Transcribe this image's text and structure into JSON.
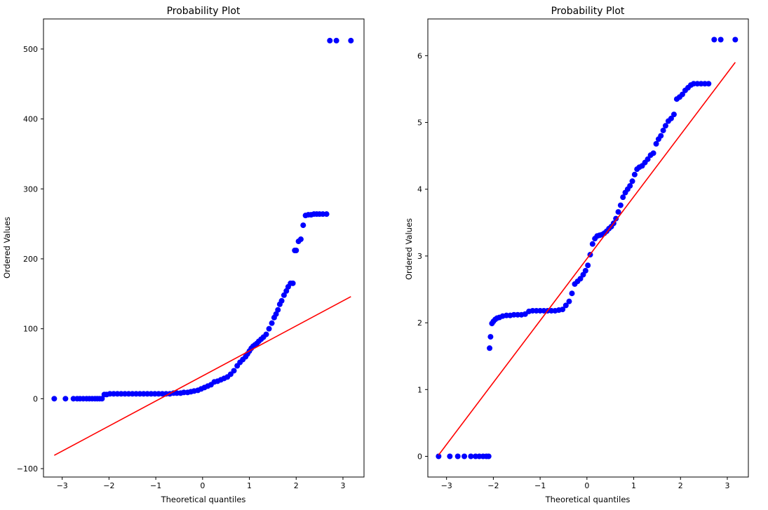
{
  "chart_data": [
    {
      "type": "scatter",
      "title": "Probability Plot",
      "xlabel": "Theoretical quantiles",
      "ylabel": "Ordered Values",
      "xlim": [
        -3.4,
        3.45
      ],
      "ylim": [
        -112,
        543
      ],
      "xticks": [
        -3,
        -2,
        -1,
        0,
        1,
        2,
        3
      ],
      "xtick_labels": [
        "−3",
        "−2",
        "−1",
        "0",
        "1",
        "2",
        "3"
      ],
      "yticks": [
        -100,
        0,
        100,
        200,
        300,
        400,
        500
      ],
      "ytick_labels": [
        "−100",
        "0",
        "100",
        "200",
        "300",
        "400",
        "500"
      ],
      "grid": false,
      "colors": {
        "points": "#0000ff",
        "fit_line": "#ff0000"
      },
      "fit_line": {
        "x": [
          -3.17,
          3.17
        ],
        "y": [
          -81,
          146
        ]
      },
      "series": [
        {
          "kind": "ordered-values",
          "x": [
            -3.17,
            -2.93,
            -2.76,
            -2.68,
            -2.62,
            -2.55,
            -2.48,
            -2.42,
            -2.36,
            -2.3,
            -2.25,
            -2.2,
            -2.15,
            -2.1,
            -2.05,
            -1.98,
            -1.9,
            -1.82,
            -1.74,
            -1.66,
            -1.58,
            -1.5,
            -1.42,
            -1.34,
            -1.26,
            -1.18,
            -1.1,
            -1.02,
            -0.94,
            -0.86,
            -0.78,
            -0.7,
            -0.62,
            -0.55,
            -0.47,
            -0.4,
            -0.32,
            -0.25,
            -0.18,
            -0.1,
            -0.03,
            0.04,
            0.11,
            0.18,
            0.25,
            0.32,
            0.39,
            0.46,
            0.53,
            0.6,
            0.67,
            0.74,
            0.8,
            0.86,
            0.92,
            0.96,
            1.0,
            1.04,
            1.08,
            1.12,
            1.16,
            1.2,
            1.25,
            1.3,
            1.36,
            1.42,
            1.48,
            1.53,
            1.57,
            1.61,
            1.65,
            1.69,
            1.74,
            1.79,
            1.83,
            1.88,
            1.93,
            1.97,
            2.0,
            2.05,
            2.1,
            2.15,
            2.2,
            2.26,
            2.32,
            2.38,
            2.44,
            2.5,
            2.57,
            2.65,
            2.72,
            2.86,
            3.17
          ],
          "y": [
            0,
            0,
            0,
            0,
            0,
            0,
            0,
            0,
            0,
            0,
            0,
            0,
            0,
            6,
            6,
            7,
            7,
            7,
            7,
            7,
            7,
            7,
            7,
            7,
            7,
            7,
            7,
            7,
            7,
            7,
            7,
            7,
            8,
            8,
            8,
            9,
            9,
            10,
            11,
            12,
            14,
            16,
            18,
            20,
            24,
            25,
            27,
            29,
            31,
            35,
            40,
            47,
            52,
            56,
            60,
            64,
            68,
            72,
            75,
            77,
            79,
            82,
            85,
            88,
            92,
            100,
            108,
            116,
            121,
            127,
            135,
            140,
            148,
            154,
            160,
            165,
            165,
            212,
            212,
            225,
            228,
            248,
            262,
            263,
            263,
            264,
            264,
            264,
            264,
            264,
            512,
            512,
            512
          ]
        }
      ]
    },
    {
      "type": "scatter",
      "title": "Probability Plot",
      "xlabel": "Theoretical quantiles",
      "ylabel": "Ordered Values",
      "xlim": [
        -3.4,
        3.45
      ],
      "ylim": [
        -0.31,
        6.55
      ],
      "xticks": [
        -3,
        -2,
        -1,
        0,
        1,
        2,
        3
      ],
      "xtick_labels": [
        "−3",
        "−2",
        "−1",
        "0",
        "1",
        "2",
        "3"
      ],
      "yticks": [
        0,
        1,
        2,
        3,
        4,
        5,
        6
      ],
      "ytick_labels": [
        "0",
        "1",
        "2",
        "3",
        "4",
        "5",
        "6"
      ],
      "grid": false,
      "colors": {
        "points": "#0000ff",
        "fit_line": "#ff0000"
      },
      "fit_line": {
        "x": [
          -3.17,
          3.17
        ],
        "y": [
          0.02,
          5.9
        ]
      },
      "series": [
        {
          "kind": "ordered-values",
          "x": [
            -3.17,
            -2.93,
            -2.76,
            -2.62,
            -2.48,
            -2.38,
            -2.3,
            -2.22,
            -2.15,
            -2.1,
            -2.08,
            -2.06,
            -2.03,
            -2.0,
            -1.96,
            -1.92,
            -1.87,
            -1.8,
            -1.72,
            -1.64,
            -1.56,
            -1.48,
            -1.4,
            -1.32,
            -1.24,
            -1.16,
            -1.08,
            -1.0,
            -0.92,
            -0.84,
            -0.76,
            -0.68,
            -0.6,
            -0.52,
            -0.45,
            -0.38,
            -0.32,
            -0.26,
            -0.2,
            -0.14,
            -0.08,
            -0.03,
            0.02,
            0.07,
            0.12,
            0.17,
            0.22,
            0.27,
            0.32,
            0.37,
            0.42,
            0.47,
            0.52,
            0.57,
            0.62,
            0.67,
            0.72,
            0.77,
            0.82,
            0.87,
            0.92,
            0.97,
            1.02,
            1.07,
            1.12,
            1.18,
            1.24,
            1.3,
            1.36,
            1.42,
            1.48,
            1.53,
            1.58,
            1.63,
            1.68,
            1.74,
            1.8,
            1.86,
            1.92,
            1.98,
            2.04,
            2.1,
            2.16,
            2.22,
            2.28,
            2.36,
            2.44,
            2.52,
            2.6,
            2.72,
            2.86,
            3.17
          ],
          "y": [
            0,
            0,
            0,
            0,
            0,
            0,
            0,
            0,
            0,
            0,
            1.62,
            1.79,
            1.99,
            2.02,
            2.05,
            2.07,
            2.08,
            2.1,
            2.11,
            2.11,
            2.12,
            2.12,
            2.12,
            2.13,
            2.17,
            2.18,
            2.18,
            2.18,
            2.18,
            2.18,
            2.18,
            2.18,
            2.19,
            2.2,
            2.26,
            2.32,
            2.44,
            2.58,
            2.62,
            2.66,
            2.72,
            2.78,
            2.86,
            3.02,
            3.18,
            3.26,
            3.3,
            3.31,
            3.32,
            3.34,
            3.37,
            3.41,
            3.44,
            3.49,
            3.56,
            3.66,
            3.76,
            3.88,
            3.95,
            4.0,
            4.05,
            4.12,
            4.22,
            4.3,
            4.33,
            4.35,
            4.4,
            4.45,
            4.51,
            4.54,
            4.68,
            4.75,
            4.8,
            4.88,
            4.95,
            5.02,
            5.06,
            5.12,
            5.35,
            5.38,
            5.42,
            5.48,
            5.52,
            5.56,
            5.58,
            5.58,
            5.58,
            5.58,
            5.58,
            6.24,
            6.24,
            6.24
          ]
        }
      ]
    }
  ]
}
